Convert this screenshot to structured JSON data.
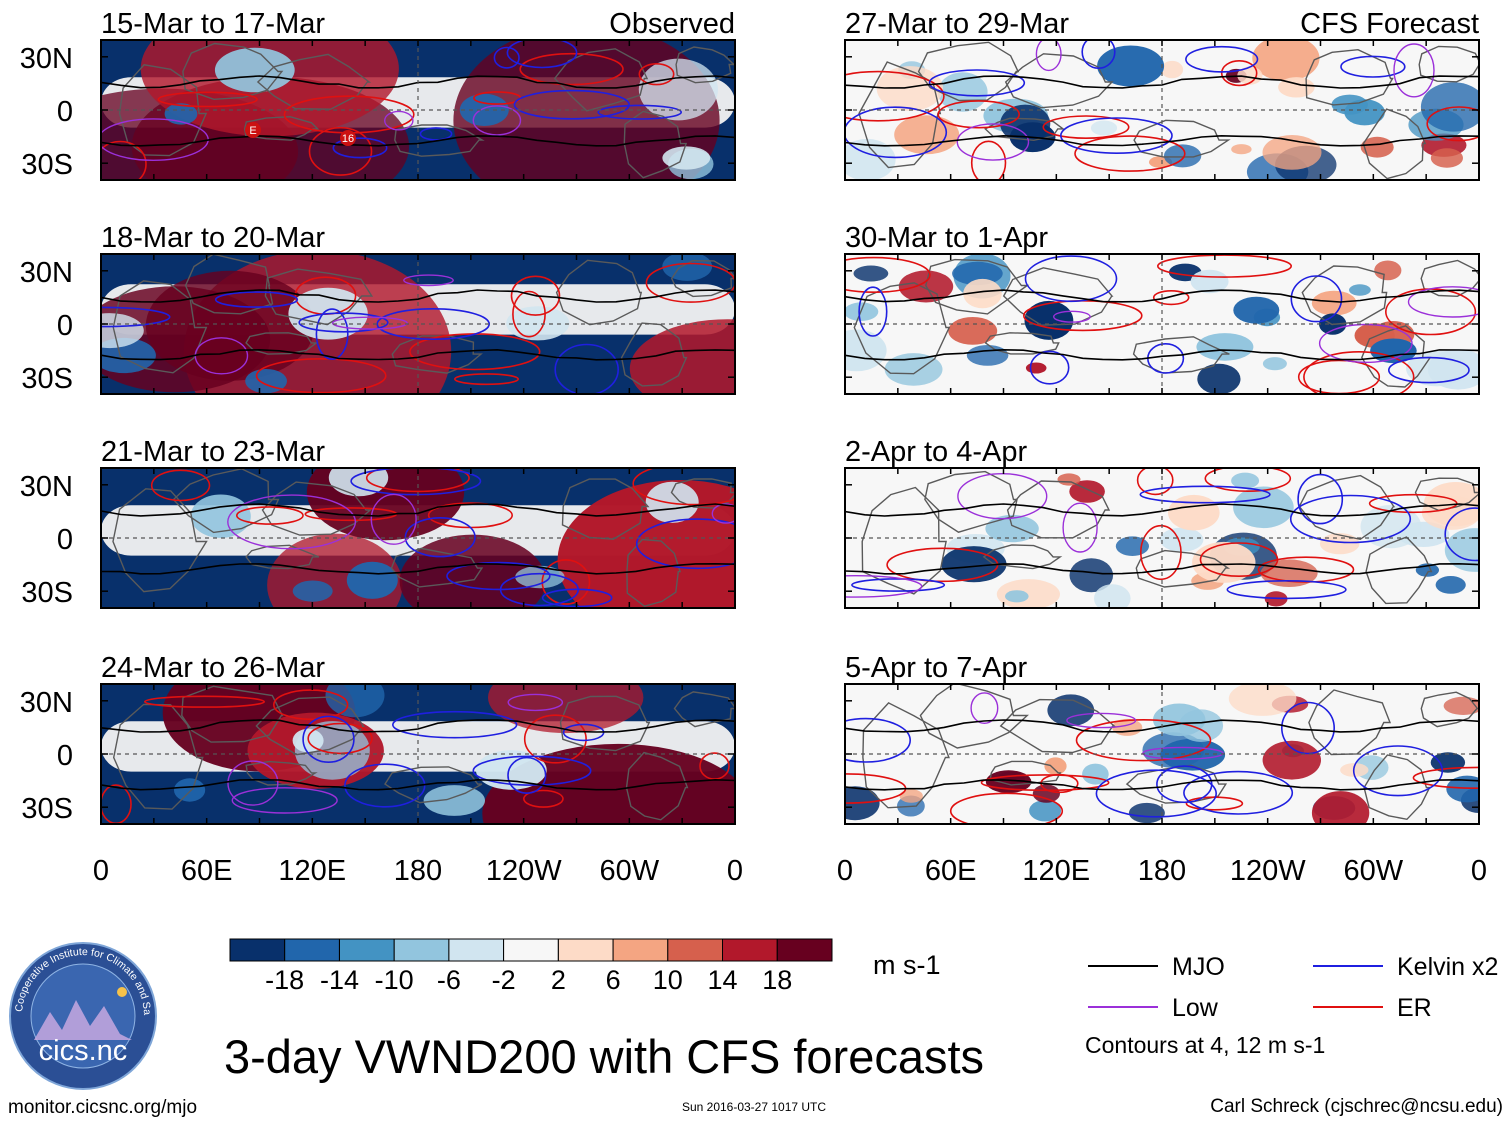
{
  "page": {
    "main_title": "3-day VWND200 with CFS forecasts",
    "url": "monitor.cicsnc.org/mjo",
    "timestamp": "Sun 2016-03-27 1017 UTC",
    "author": "Carl Schreck (cjschrec@ncsu.edu)",
    "logo": {
      "name": "cics.nc",
      "ring_text": "Cooperative Institute for Climate and Satellites",
      "icon": "globe-logo-icon"
    }
  },
  "chart_data": {
    "type": "heatmap",
    "title": "3-day VWND200 with CFS forecasts",
    "xlabel": "",
    "ylabel": "",
    "xlim": [
      0,
      360
    ],
    "ylim": [
      -40,
      40
    ],
    "grid": false,
    "lat_ticks": [
      "30N",
      "0",
      "30S"
    ],
    "lon_ticks": [
      "0",
      "60E",
      "120E",
      "180",
      "120W",
      "60W",
      "0"
    ],
    "observed_label": "Observed",
    "forecast_label": "CFS Forecast",
    "panels": [
      {
        "period": "15-Mar to 17-Mar",
        "source": "observed",
        "labels": [
          "E",
          "16"
        ]
      },
      {
        "period": "18-Mar to 20-Mar",
        "source": "observed",
        "labels": []
      },
      {
        "period": "21-Mar to 23-Mar",
        "source": "observed",
        "labels": []
      },
      {
        "period": "24-Mar to 26-Mar",
        "source": "observed",
        "labels": []
      },
      {
        "period": "27-Mar to 29-Mar",
        "source": "forecast",
        "labels": []
      },
      {
        "period": "30-Mar to 1-Apr",
        "source": "forecast",
        "labels": []
      },
      {
        "period": "2-Apr to 4-Apr",
        "source": "forecast",
        "labels": []
      },
      {
        "period": "5-Apr to 7-Apr",
        "source": "forecast",
        "labels": []
      }
    ],
    "colorbar": {
      "units": "m s-1",
      "tick_labels": [
        "-18",
        "-14",
        "-10",
        "-6",
        "-2",
        "2",
        "6",
        "10",
        "14",
        "18"
      ],
      "colors": [
        "#08306b",
        "#2166ac",
        "#4393c3",
        "#92c5de",
        "#d1e5f0",
        "#f7f7f7",
        "#fddbc7",
        "#f4a582",
        "#d6604d",
        "#b2182b",
        "#67001f"
      ]
    },
    "legend": {
      "entries": [
        {
          "label": "MJO",
          "color": "#000000"
        },
        {
          "label": "Kelvin x2",
          "color": "#1f1fe0"
        },
        {
          "label": "Low",
          "color": "#9b30d9"
        },
        {
          "label": "ER",
          "color": "#e01010"
        }
      ],
      "note": "Contours at 4, 12 m s-1"
    }
  }
}
